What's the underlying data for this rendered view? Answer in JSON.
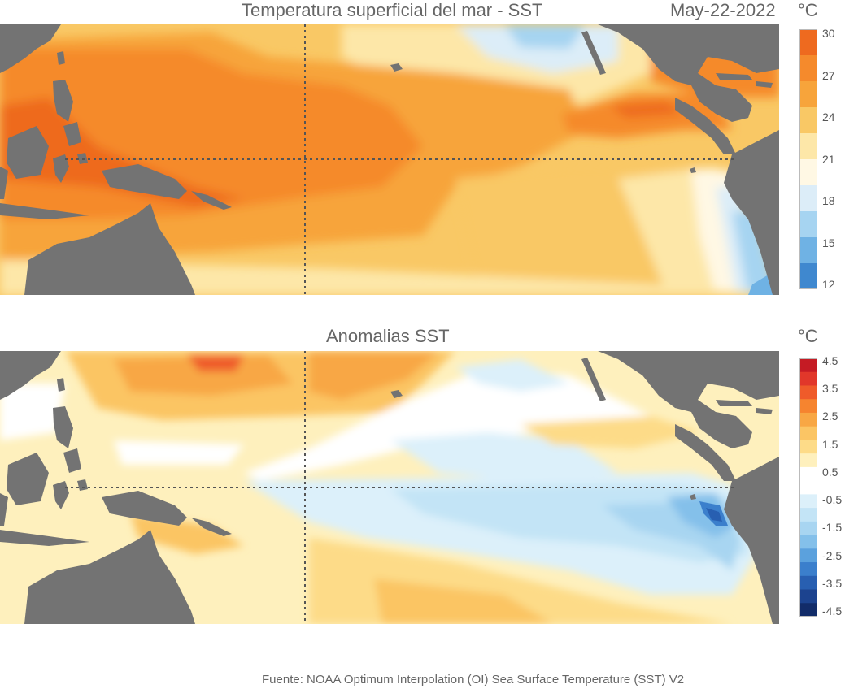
{
  "top_panel": {
    "title": "Temperatura superficial del mar - SST",
    "date": "May-22-2022",
    "unit": "°C",
    "colorbar": {
      "labels": [
        "30",
        "27",
        "24",
        "21",
        "18",
        "15",
        "12"
      ],
      "colors": [
        "#ee6a1f",
        "#f58a2c",
        "#f7a43b",
        "#f9c865",
        "#fde7a8",
        "#fff8e4",
        "#dcedf8",
        "#a6d4f1",
        "#6fb2e4",
        "#3f88cf"
      ]
    }
  },
  "bottom_panel": {
    "title": "Anomalias SST",
    "unit": "°C",
    "colorbar": {
      "labels": [
        "4.5",
        "3.5",
        "2.5",
        "1.5",
        "0.5",
        "-0.5",
        "-1.5",
        "-2.5",
        "-3.5",
        "-4.5"
      ],
      "colors": [
        "#c51b24",
        "#e1372a",
        "#ef5b2a",
        "#f6842f",
        "#f8a744",
        "#fbc564",
        "#fddb88",
        "#fef0bd",
        "#ffffff",
        "#ffffff",
        "#dcf0fa",
        "#c3e4f6",
        "#a8d5f1",
        "#84c0ea",
        "#5ba1dd",
        "#3b7fcc",
        "#285fb1",
        "#1c438f",
        "#122c69"
      ]
    }
  },
  "footer": "Fuente: NOAA Optimum Interpolation (OI) Sea Surface Temperature (SST) V2",
  "land_color": "#737373"
}
